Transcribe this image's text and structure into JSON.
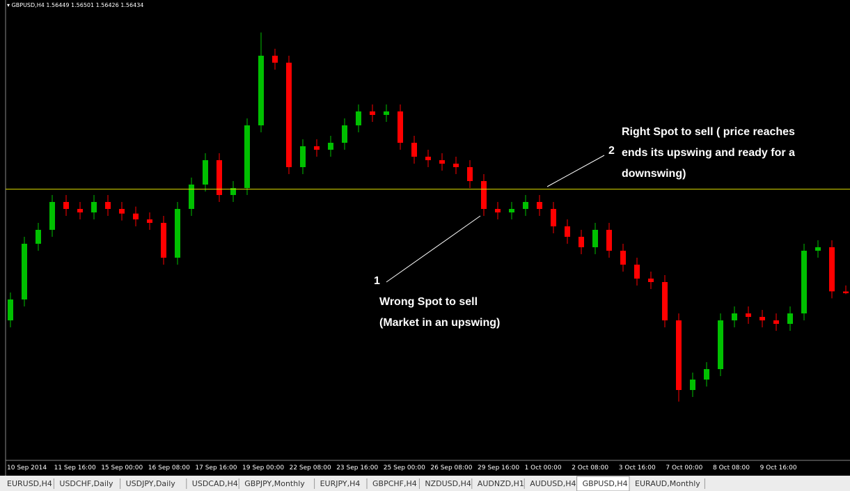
{
  "chart_data": {
    "type": "candlestick",
    "symbol": "GBPUSD,H4",
    "ylim": [
      1.55,
      1.589
    ],
    "hline": 1.5733,
    "up_color": "#00c000",
    "down_color": "#ff0000",
    "hline_color": "#e0e000",
    "open": [
      1.562,
      1.5638,
      1.5686,
      1.5698,
      1.5722,
      1.5716,
      1.5713,
      1.5722,
      1.5716,
      1.5712,
      1.5707,
      1.5704,
      1.5674,
      1.5716,
      1.5737,
      1.5758,
      1.5728,
      1.5734,
      1.5788,
      1.5848,
      1.5842,
      1.5752,
      1.577,
      1.5767,
      1.5773,
      1.5788,
      1.58,
      1.5797,
      1.58,
      1.5773,
      1.5761,
      1.5758,
      1.5755,
      1.5752,
      1.574,
      1.5716,
      1.5713,
      1.5716,
      1.5722,
      1.5716,
      1.5701,
      1.5692,
      1.5683,
      1.5698,
      1.568,
      1.5668,
      1.5656,
      1.5653,
      1.562,
      1.556,
      1.5569,
      1.5578,
      1.562,
      1.5626,
      1.5623,
      1.562,
      1.5617,
      1.5626,
      1.568,
      1.5683,
      1.56449
    ],
    "high": [
      1.5644,
      1.5692,
      1.5704,
      1.5728,
      1.5728,
      1.5722,
      1.5728,
      1.5728,
      1.5722,
      1.5718,
      1.5713,
      1.571,
      1.5722,
      1.5743,
      1.5764,
      1.5764,
      1.574,
      1.5794,
      1.5868,
      1.5854,
      1.5848,
      1.5776,
      1.5776,
      1.5779,
      1.5794,
      1.5806,
      1.5806,
      1.5806,
      1.5806,
      1.5779,
      1.5767,
      1.5764,
      1.5761,
      1.5758,
      1.5746,
      1.5722,
      1.5722,
      1.5728,
      1.5728,
      1.5722,
      1.5707,
      1.5698,
      1.5704,
      1.5704,
      1.5686,
      1.5674,
      1.5662,
      1.5659,
      1.5626,
      1.5575,
      1.5584,
      1.5626,
      1.5632,
      1.5632,
      1.5629,
      1.5626,
      1.5632,
      1.5686,
      1.5689,
      1.5689,
      1.56501
    ],
    "low": [
      1.5614,
      1.5632,
      1.568,
      1.5692,
      1.571,
      1.5707,
      1.5707,
      1.571,
      1.5706,
      1.5701,
      1.5698,
      1.5668,
      1.5668,
      1.571,
      1.5731,
      1.5722,
      1.5722,
      1.5728,
      1.5782,
      1.5836,
      1.5746,
      1.5746,
      1.5761,
      1.5761,
      1.5767,
      1.5782,
      1.5791,
      1.5791,
      1.5767,
      1.5755,
      1.5752,
      1.5749,
      1.5746,
      1.5734,
      1.571,
      1.5707,
      1.5707,
      1.571,
      1.571,
      1.5695,
      1.5686,
      1.5677,
      1.5677,
      1.5674,
      1.5662,
      1.565,
      1.5647,
      1.5614,
      1.555,
      1.5554,
      1.5563,
      1.5572,
      1.5614,
      1.5617,
      1.5614,
      1.5611,
      1.5611,
      1.562,
      1.5674,
      1.5639,
      1.56426
    ],
    "close": [
      1.5638,
      1.5686,
      1.5698,
      1.5722,
      1.5716,
      1.5713,
      1.5722,
      1.5716,
      1.5712,
      1.5707,
      1.5704,
      1.5674,
      1.5716,
      1.5737,
      1.5758,
      1.5728,
      1.5734,
      1.5788,
      1.5848,
      1.5842,
      1.5752,
      1.577,
      1.5767,
      1.5773,
      1.5788,
      1.58,
      1.5797,
      1.58,
      1.5773,
      1.5761,
      1.5758,
      1.5755,
      1.5752,
      1.574,
      1.5716,
      1.5713,
      1.5716,
      1.5722,
      1.5716,
      1.5701,
      1.5692,
      1.5683,
      1.5698,
      1.568,
      1.5668,
      1.5656,
      1.5653,
      1.562,
      1.556,
      1.5569,
      1.5578,
      1.562,
      1.5626,
      1.5623,
      1.562,
      1.5617,
      1.5626,
      1.568,
      1.5683,
      1.5645,
      1.56434
    ],
    "xlabels": [
      "10 Sep 2014",
      "11 Sep 16:00",
      "15 Sep 00:00",
      "16 Sep 08:00",
      "17 Sep 16:00",
      "19 Sep 00:00",
      "22 Sep 08:00",
      "23 Sep 16:00",
      "25 Sep 00:00",
      "26 Sep 08:00",
      "29 Sep 16:00",
      "1 Oct 00:00",
      "2 Oct 08:00",
      "3 Oct 16:00",
      "7 Oct 00:00",
      "8 Oct 08:00",
      "9 Oct 16:00"
    ],
    "annotations": [
      {
        "number": "1",
        "lines": [
          "Wrong Spot to sell",
          "(Market in an upswing)"
        ]
      },
      {
        "number": "2",
        "lines": [
          "Right Spot to sell ( price reaches",
          "ends  its upswing and ready for a",
          "downswing)"
        ]
      }
    ]
  },
  "tabs": [
    "EURUSD,H4",
    "USDCHF,Daily",
    "USDJPY,Daily",
    "USDCAD,H4",
    "GBPJPY,Monthly",
    "EURJPY,H4",
    "GBPCHF,H4",
    "NZDUSD,H4",
    "AUDNZD,H1",
    "AUDUSD,H4",
    "GBPUSD,H4",
    "EURAUD,Monthly"
  ],
  "active_tab": "GBPUSD,H4"
}
